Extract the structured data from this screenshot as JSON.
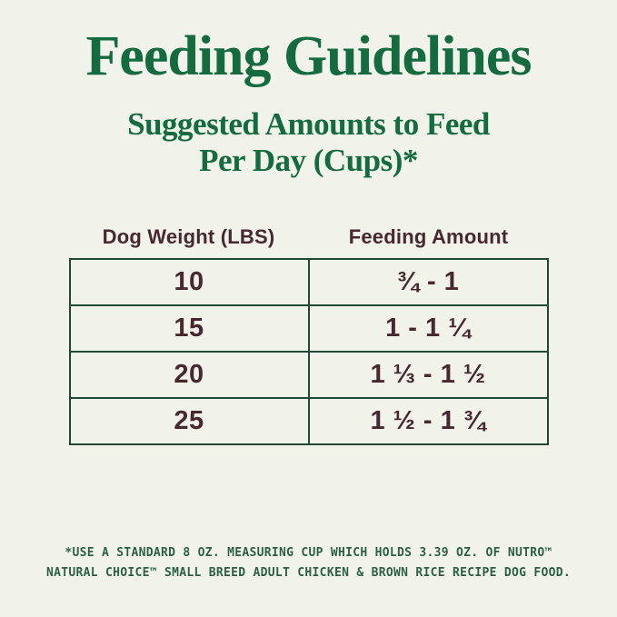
{
  "colors": {
    "background": "#f1f3ea",
    "heading_green": "#156b40",
    "table_text": "#472830",
    "table_border": "#214736",
    "footnote_green": "#2c5f46"
  },
  "title": "Feeding Guidelines",
  "subtitle": {
    "line1": "Suggested Amounts to Feed",
    "line2": "Per Day (Cups)*"
  },
  "table": {
    "headers": [
      "Dog Weight (LBS)",
      "Feeding Amount"
    ],
    "rows": [
      {
        "weight": "10",
        "amount": "¾ - 1"
      },
      {
        "weight": "15",
        "amount": "1 - 1 ¼"
      },
      {
        "weight": "20",
        "amount": "1 ⅓ - 1 ½"
      },
      {
        "weight": "25",
        "amount": "1 ½ - 1 ¾"
      }
    ]
  },
  "footnote": {
    "line1": "*USE A STANDARD 8 OZ. MEASURING CUP WHICH HOLDS 3.39 OZ. OF NUTRO™",
    "line2": "NATURAL CHOICE™ SMALL BREED ADULT CHICKEN & BROWN RICE RECIPE DOG FOOD."
  }
}
